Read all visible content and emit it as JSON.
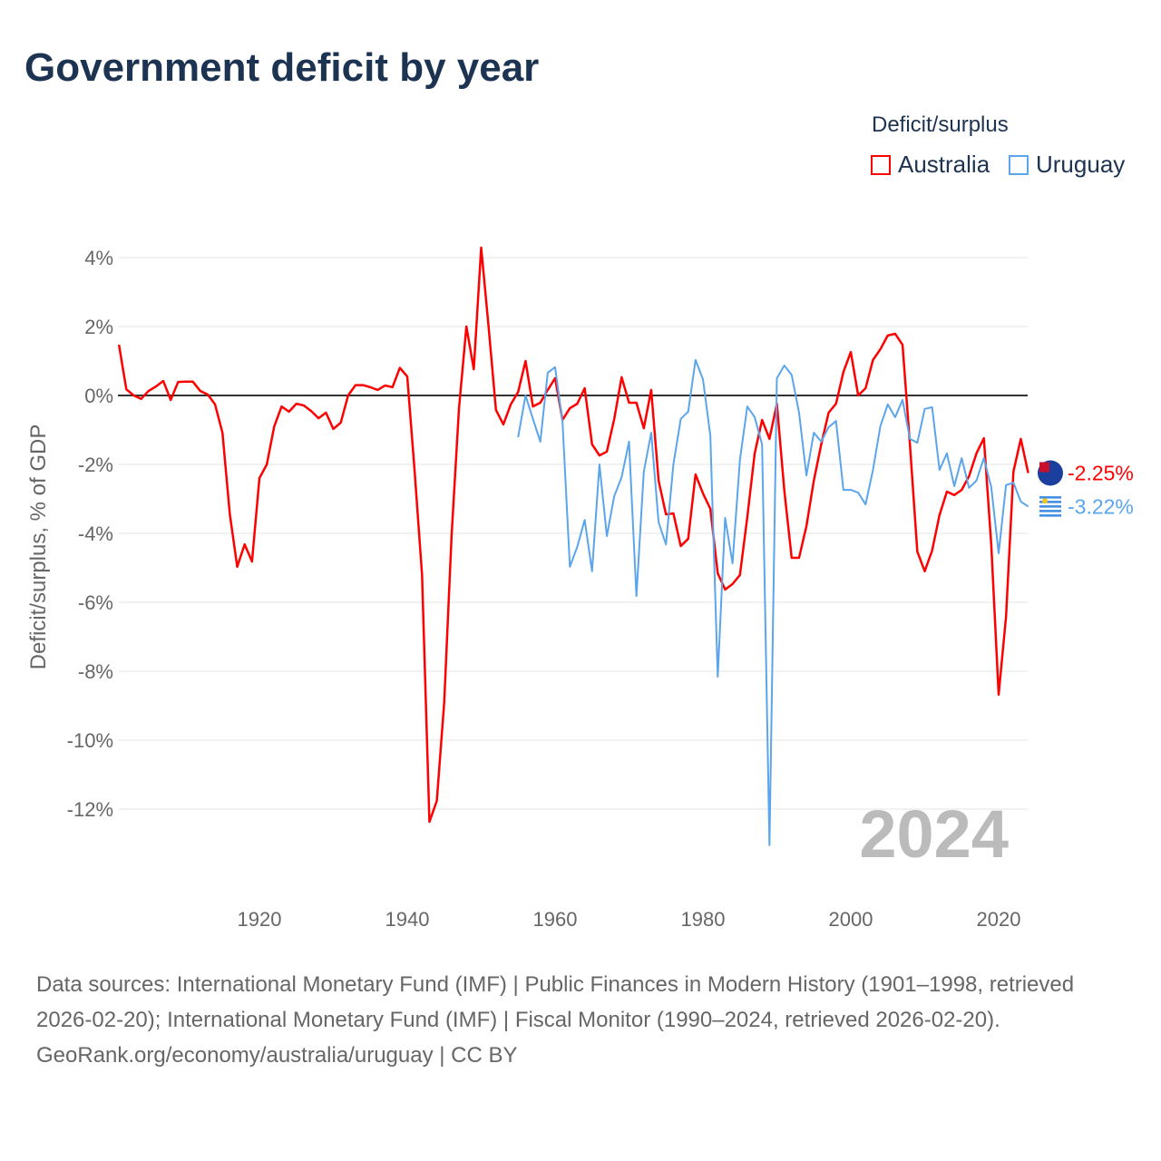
{
  "title": "Government deficit by year",
  "legend": {
    "title": "Deficit/surplus",
    "items": [
      {
        "label": "Australia",
        "color": "#ff0000"
      },
      {
        "label": "Uruguay",
        "color": "#5aa5ec"
      }
    ]
  },
  "chart_data": {
    "type": "line",
    "title": "Government deficit by year",
    "ylabel": "Deficit/surplus, % of GDP",
    "xlabel": "",
    "ylim": [
      -14,
      4.5
    ],
    "xlim": [
      1900,
      2025
    ],
    "yticks": [
      "4%",
      "2%",
      "0%",
      "-2%",
      "-4%",
      "-6%",
      "-8%",
      "-10%",
      "-12%"
    ],
    "ytick_values": [
      4,
      2,
      0,
      -2,
      -4,
      -6,
      -8,
      -10,
      -12
    ],
    "xticks": [
      "1920",
      "1940",
      "1960",
      "1980",
      "2000",
      "2020"
    ],
    "xtick_values": [
      1920,
      1940,
      1960,
      1980,
      2000,
      2020
    ],
    "watermark_year": "2024",
    "legend_position": "top-right",
    "series": [
      {
        "name": "Australia",
        "color": "#ff0000",
        "start_year": 1901,
        "end_label": "-2.25%",
        "values": [
          1.47,
          0.18,
          0,
          -0.1,
          0.13,
          0.26,
          0.42,
          -0.13,
          0.39,
          0.4,
          0.4,
          0.13,
          0.03,
          -0.26,
          -1.08,
          -3.45,
          -4.97,
          -4.32,
          -4.82,
          -2.4,
          -2.0,
          -0.9,
          -0.32,
          -0.47,
          -0.24,
          -0.29,
          -0.45,
          -0.66,
          -0.5,
          -0.97,
          -0.79,
          0,
          0.3,
          0.3,
          0.24,
          0.16,
          0.29,
          0.24,
          0.8,
          0.55,
          -2.2,
          -5.2,
          -12.37,
          -11.76,
          -8.9,
          -4.05,
          -0.37,
          2.0,
          0.76,
          4.29,
          2.0,
          -0.42,
          -0.84,
          -0.26,
          0.1,
          1.0,
          -0.32,
          -0.21,
          0.16,
          0.5,
          -0.71,
          -0.37,
          -0.24,
          0.21,
          -1.42,
          -1.74,
          -1.63,
          -0.68,
          0.53,
          -0.21,
          -0.21,
          -0.95,
          0.16,
          -2.47,
          -3.45,
          -3.42,
          -4.37,
          -4.16,
          -2.29,
          -2.84,
          -3.29,
          -5.16,
          -5.63,
          -5.47,
          -5.21,
          -3.53,
          -1.68,
          -0.71,
          -1.26,
          -0.24,
          -2.74,
          -4.71,
          -4.71,
          -3.79,
          -2.47,
          -1.42,
          -0.5,
          -0.24,
          0.68,
          1.26,
          0,
          0.21,
          1.03,
          1.34,
          1.74,
          1.79,
          1.47,
          -1.42,
          -4.53,
          -5.1,
          -4.5,
          -3.47,
          -2.79,
          -2.89,
          -2.74,
          -2.34,
          -1.68,
          -1.24,
          -4.32,
          -8.68,
          -6.42,
          -2.21,
          -1.26,
          -2.25
        ]
      },
      {
        "name": "Uruguay",
        "color": "#5aa5ec",
        "start_year": 1955,
        "end_label": "-3.22%",
        "values": [
          -1.21,
          0,
          -0.68,
          -1.34,
          0.66,
          0.82,
          -0.76,
          -4.97,
          -4.39,
          -3.61,
          -5.1,
          -2.0,
          -4.08,
          -2.92,
          -2.37,
          -1.34,
          -5.82,
          -2.21,
          -1.08,
          -3.68,
          -4.32,
          -2.0,
          -0.68,
          -0.47,
          1.03,
          0.47,
          -1.16,
          -8.16,
          -3.55,
          -4.87,
          -1.87,
          -0.32,
          -0.63,
          -1.42,
          -13.05,
          0.5,
          0.87,
          0.6,
          -0.5,
          -2.32,
          -1.08,
          -1.34,
          -0.92,
          -0.74,
          -2.74,
          -2.74,
          -2.82,
          -3.16,
          -2.16,
          -0.89,
          -0.26,
          -0.63,
          -0.13,
          -1.26,
          -1.37,
          -0.39,
          -0.34,
          -2.16,
          -1.68,
          -2.63,
          -1.82,
          -2.68,
          -2.47,
          -1.82,
          -2.66,
          -4.58,
          -2.6,
          -2.53,
          -3.08,
          -3.22
        ]
      }
    ]
  },
  "footer": {
    "sources": "Data sources: International Monetary Fund (IMF) | Public Finances in Modern History (1901–1998, retrieved 2026-02-20); International Monetary Fund (IMF) | Fiscal Monitor (1990–2024, retrieved 2026-02-20).",
    "credit": "GeoRank.org/economy/australia/uruguay | CC BY"
  }
}
